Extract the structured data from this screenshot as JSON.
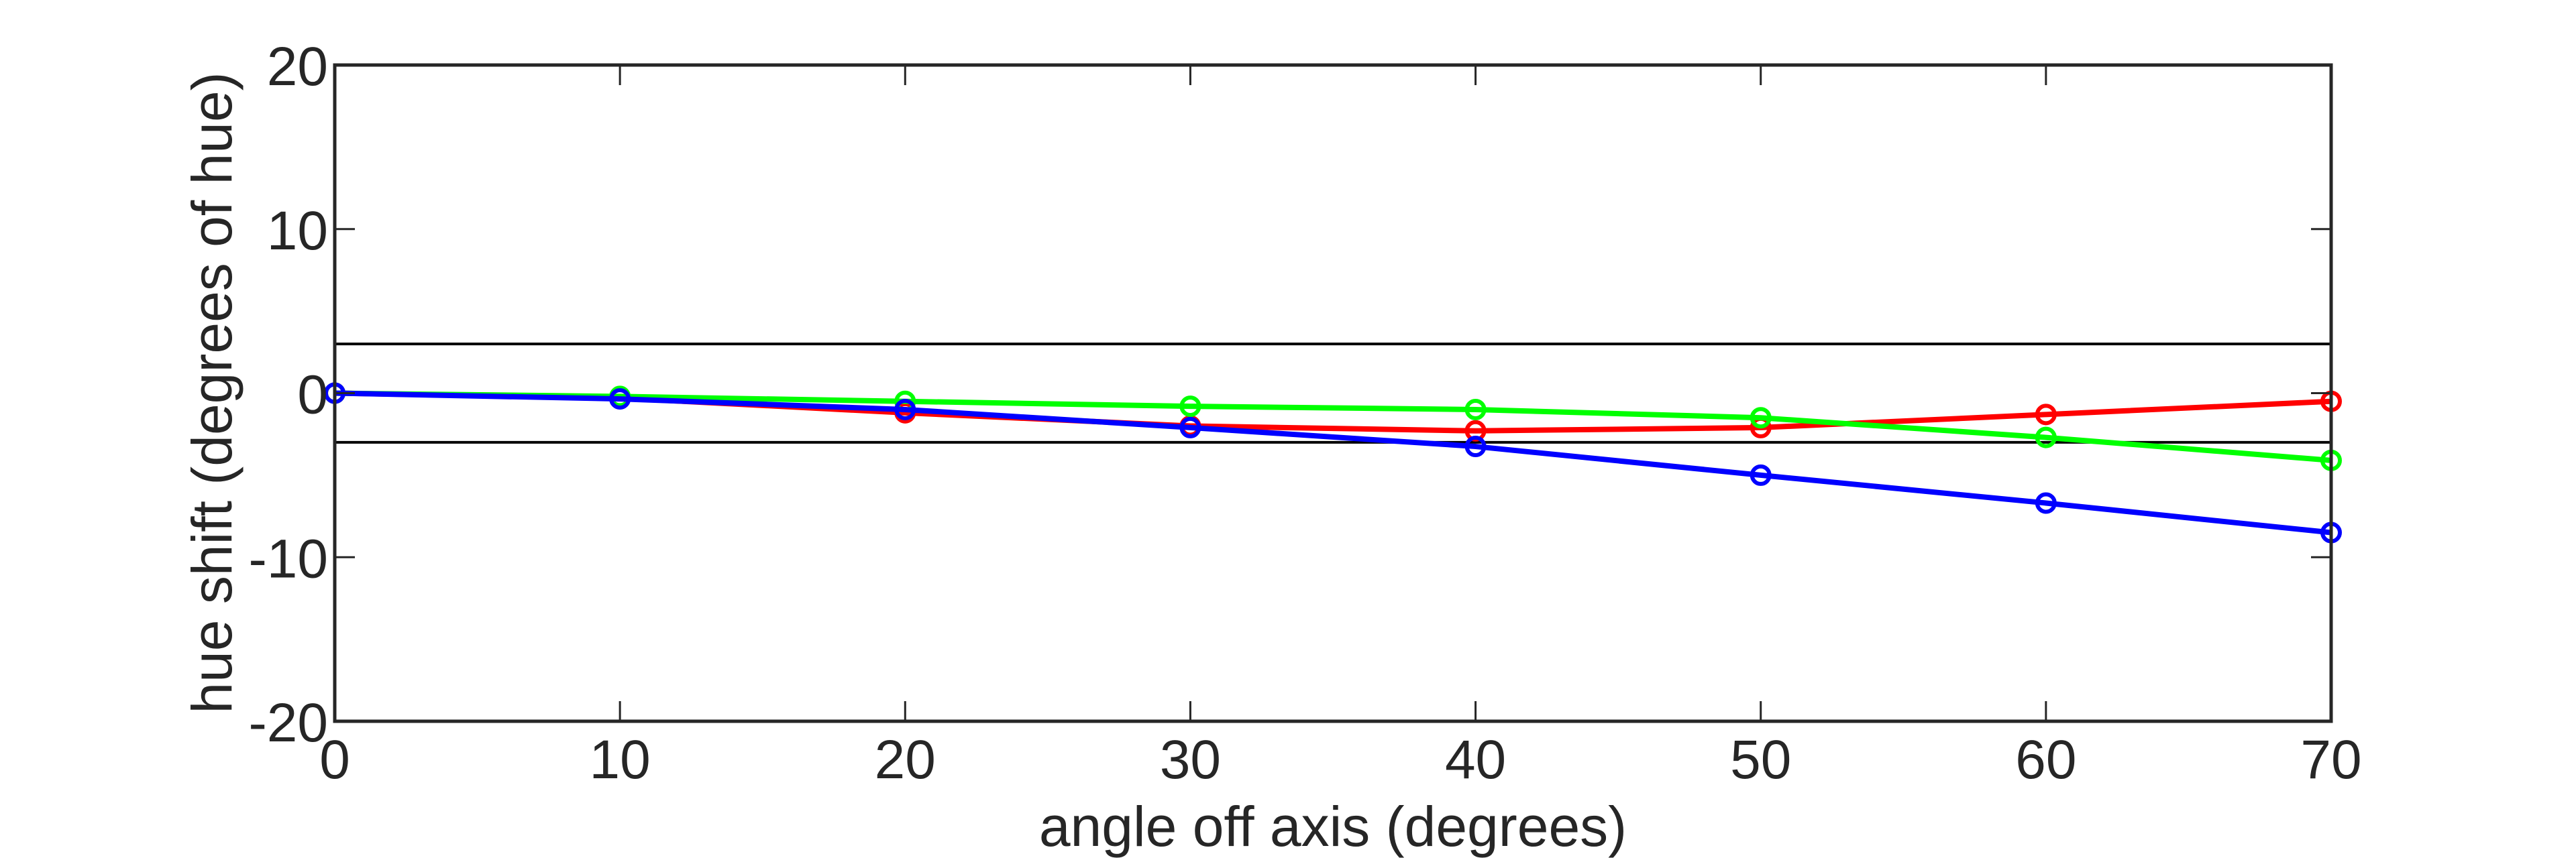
{
  "chart_data": {
    "type": "line",
    "title": "",
    "xlabel": "angle off axis (degrees)",
    "ylabel": "hue shift (degrees of hue)",
    "xlim": [
      0,
      70
    ],
    "ylim": [
      -20,
      20
    ],
    "xticks": [
      0,
      10,
      20,
      30,
      40,
      50,
      60,
      70
    ],
    "yticks": [
      -20,
      -10,
      0,
      10,
      20
    ],
    "xtick_labels": [
      "0",
      "10",
      "20",
      "30",
      "40",
      "50",
      "60",
      "70"
    ],
    "ytick_labels": [
      "-20",
      "-10",
      "0",
      "10",
      "20"
    ],
    "grid": false,
    "reference_lines": [
      3,
      -3
    ],
    "x": [
      0,
      10,
      20,
      30,
      40,
      50,
      60,
      70
    ],
    "series": [
      {
        "name": "red",
        "color": "#ff0000",
        "values": [
          0,
          -0.3,
          -1.2,
          -2.0,
          -2.3,
          -2.1,
          -1.3,
          -0.5
        ]
      },
      {
        "name": "green",
        "color": "#00ff00",
        "values": [
          0,
          -0.2,
          -0.5,
          -0.8,
          -1.0,
          -1.5,
          -2.7,
          -4.1
        ]
      },
      {
        "name": "blue",
        "color": "#0000ff",
        "values": [
          0,
          -0.35,
          -1.0,
          -2.1,
          -3.25,
          -5.0,
          -6.7,
          -8.5
        ]
      }
    ]
  }
}
